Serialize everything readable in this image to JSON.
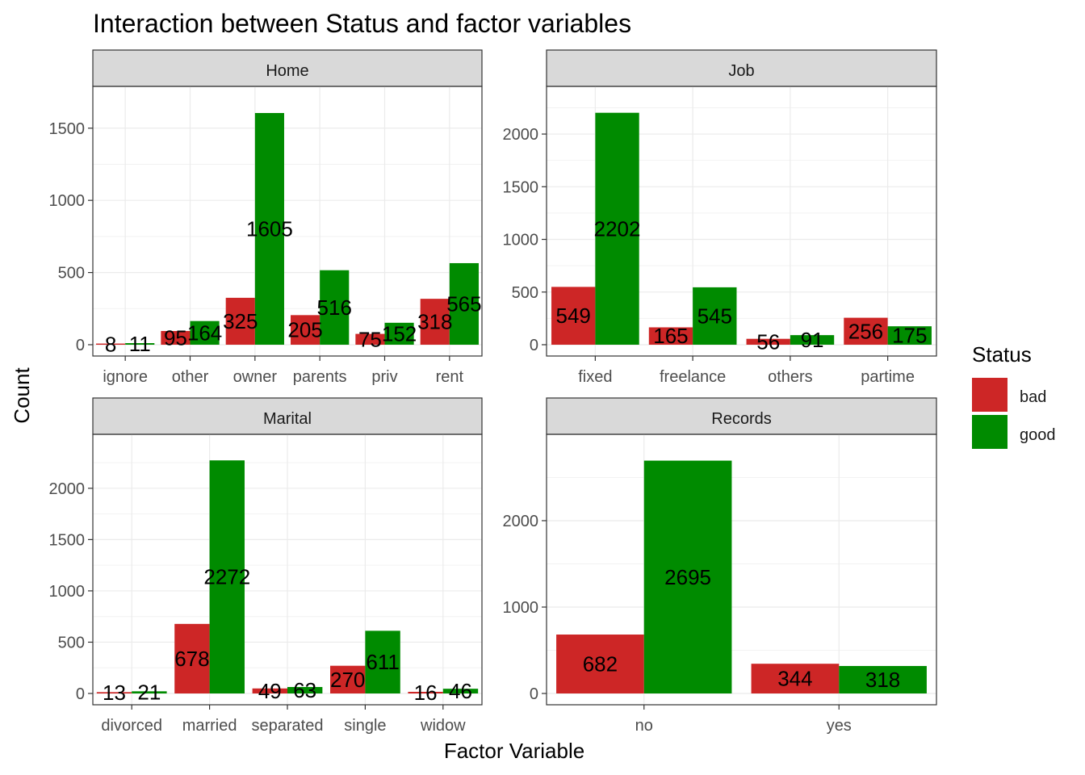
{
  "chart_data": {
    "type": "bar",
    "title": "Interaction between Status and factor variables",
    "xlabel": "Factor Variable",
    "ylabel": "Count",
    "legend": {
      "title": "Status",
      "position": "right",
      "entries": [
        {
          "name": "bad",
          "color": "#CD2626"
        },
        {
          "name": "good",
          "color": "#008B00"
        }
      ]
    },
    "panels": [
      {
        "strip": "Home",
        "categories": [
          "ignore",
          "other",
          "owner",
          "parents",
          "priv",
          "rent"
        ],
        "ylim": [
          0,
          1700
        ],
        "yticks": [
          0,
          500,
          1000,
          1500
        ],
        "series": [
          {
            "name": "bad",
            "values": [
              8,
              95,
              325,
              205,
              75,
              318
            ]
          },
          {
            "name": "good",
            "values": [
              11,
              164,
              1605,
              516,
              152,
              565
            ]
          }
        ]
      },
      {
        "strip": "Job",
        "categories": [
          "fixed",
          "freelance",
          "others",
          "partime"
        ],
        "ylim": [
          0,
          2330
        ],
        "yticks": [
          0,
          500,
          1000,
          1500,
          2000
        ],
        "series": [
          {
            "name": "bad",
            "values": [
              549,
              165,
              56,
              256
            ]
          },
          {
            "name": "good",
            "values": [
              2202,
              545,
              91,
              175
            ]
          }
        ]
      },
      {
        "strip": "Marital",
        "categories": [
          "divorced",
          "married",
          "separated",
          "single",
          "widow"
        ],
        "ylim": [
          0,
          2400
        ],
        "yticks": [
          0,
          500,
          1000,
          1500,
          2000
        ],
        "series": [
          {
            "name": "bad",
            "values": [
              13,
              678,
              49,
              270,
              16
            ]
          },
          {
            "name": "good",
            "values": [
              21,
              2272,
              63,
              611,
              46
            ]
          }
        ]
      },
      {
        "strip": "Records",
        "categories": [
          "no",
          "yes"
        ],
        "ylim": [
          0,
          2850
        ],
        "yticks": [
          0,
          1000,
          2000
        ],
        "series": [
          {
            "name": "bad",
            "values": [
              682,
              344
            ]
          },
          {
            "name": "good",
            "values": [
              2695,
              318
            ]
          }
        ]
      }
    ]
  }
}
